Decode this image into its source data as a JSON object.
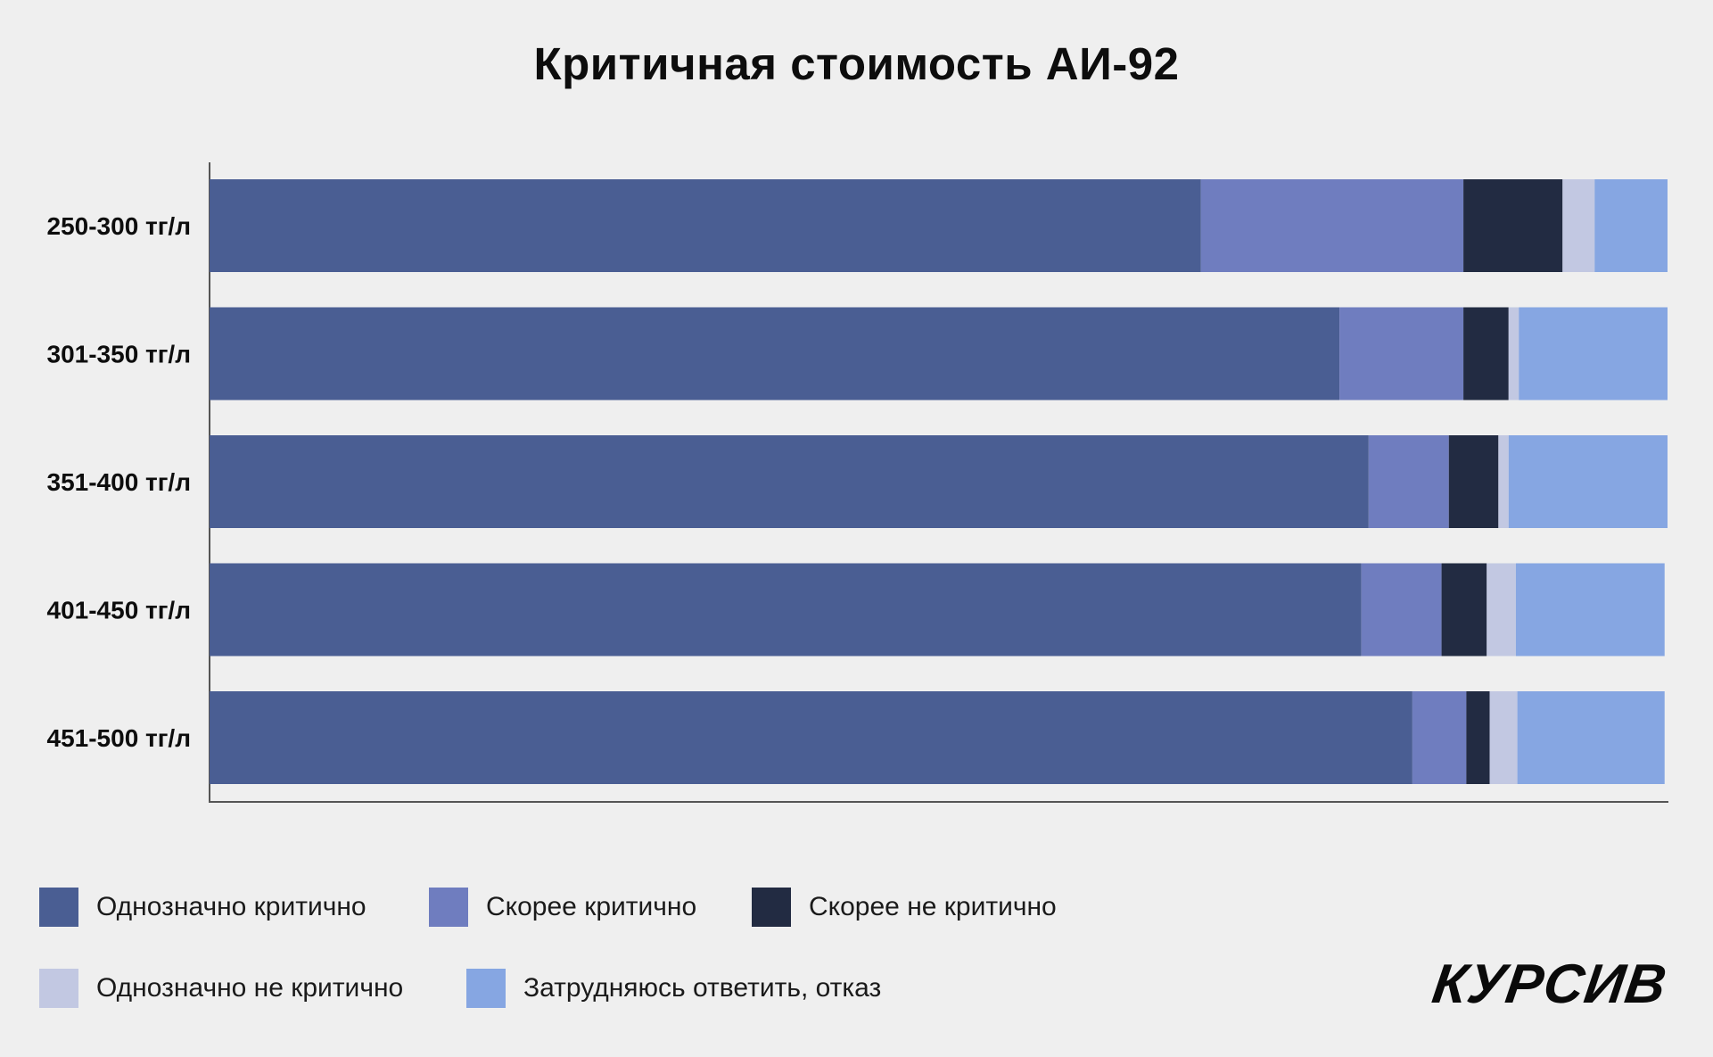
{
  "title": "Критичная стоимость АИ-92",
  "chart_data": {
    "type": "bar",
    "orientation": "horizontal",
    "stacked": true,
    "title": "Критичная стоимость АИ-92",
    "categories": [
      "250-300 тг/л",
      "301-350 тг/л",
      "351-400 тг/л",
      "401-450 тг/л",
      "451-500 тг/л"
    ],
    "series": [
      {
        "name": "Однозначно критично",
        "color": "#4a5e93",
        "values": [
          68,
          77.5,
          79.5,
          79,
          82.5
        ]
      },
      {
        "name": "Скорее критично",
        "color": "#6f7dbf",
        "values": [
          18,
          8.5,
          5.5,
          5.5,
          3.7
        ]
      },
      {
        "name": "Скорее не критично",
        "color": "#222b42",
        "values": [
          6.8,
          3.1,
          3.4,
          3.1,
          1.6
        ]
      },
      {
        "name": "Однозначно не критично",
        "color": "#c2c8e2",
        "values": [
          2.2,
          0.7,
          0.7,
          2,
          1.9
        ]
      },
      {
        "name": "Затрудняюсь ответить, отказ",
        "color": "#86a6e2",
        "values": [
          5,
          10.2,
          10.9,
          10.2,
          10.1
        ]
      }
    ],
    "xlim": [
      0,
      100
    ],
    "grid": false,
    "legend_position": "bottom"
  },
  "legend": [
    {
      "label": "Однозначно критично",
      "color": "#4a5e93"
    },
    {
      "label": "Скорее критично",
      "color": "#6f7dbf"
    },
    {
      "label": "Скорее не критично",
      "color": "#222b42"
    },
    {
      "label": "Однозначно не критично",
      "color": "#c2c8e2"
    },
    {
      "label": "Затрудняюсь ответить, отказ",
      "color": "#86a6e2"
    }
  ],
  "logo": "КУРСИВ"
}
